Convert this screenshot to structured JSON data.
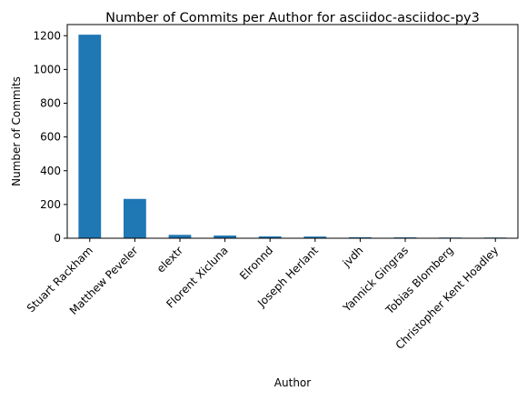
{
  "chart_data": {
    "type": "bar",
    "title": "Number of Commits per Author for asciidoc-asciidoc-py3",
    "xlabel": "Author",
    "ylabel": "Number of Commits",
    "categories": [
      "Stuart Rackham",
      "Matthew Peveler",
      "elextr",
      "Florent Xicluna",
      "Elronnd",
      "Joseph Herlant",
      "jvdh",
      "Yannick Gingras",
      "Tobias Blomberg",
      "Christopher Kent Hoadley"
    ],
    "values": [
      1206,
      233,
      20,
      16,
      11,
      10,
      6,
      5,
      4,
      4
    ],
    "ylim": [
      0,
      1266
    ],
    "yticks": [
      0,
      200,
      400,
      600,
      800,
      1000,
      1200
    ],
    "bar_color": "#1f77b4",
    "grid": false,
    "legend": "none"
  }
}
